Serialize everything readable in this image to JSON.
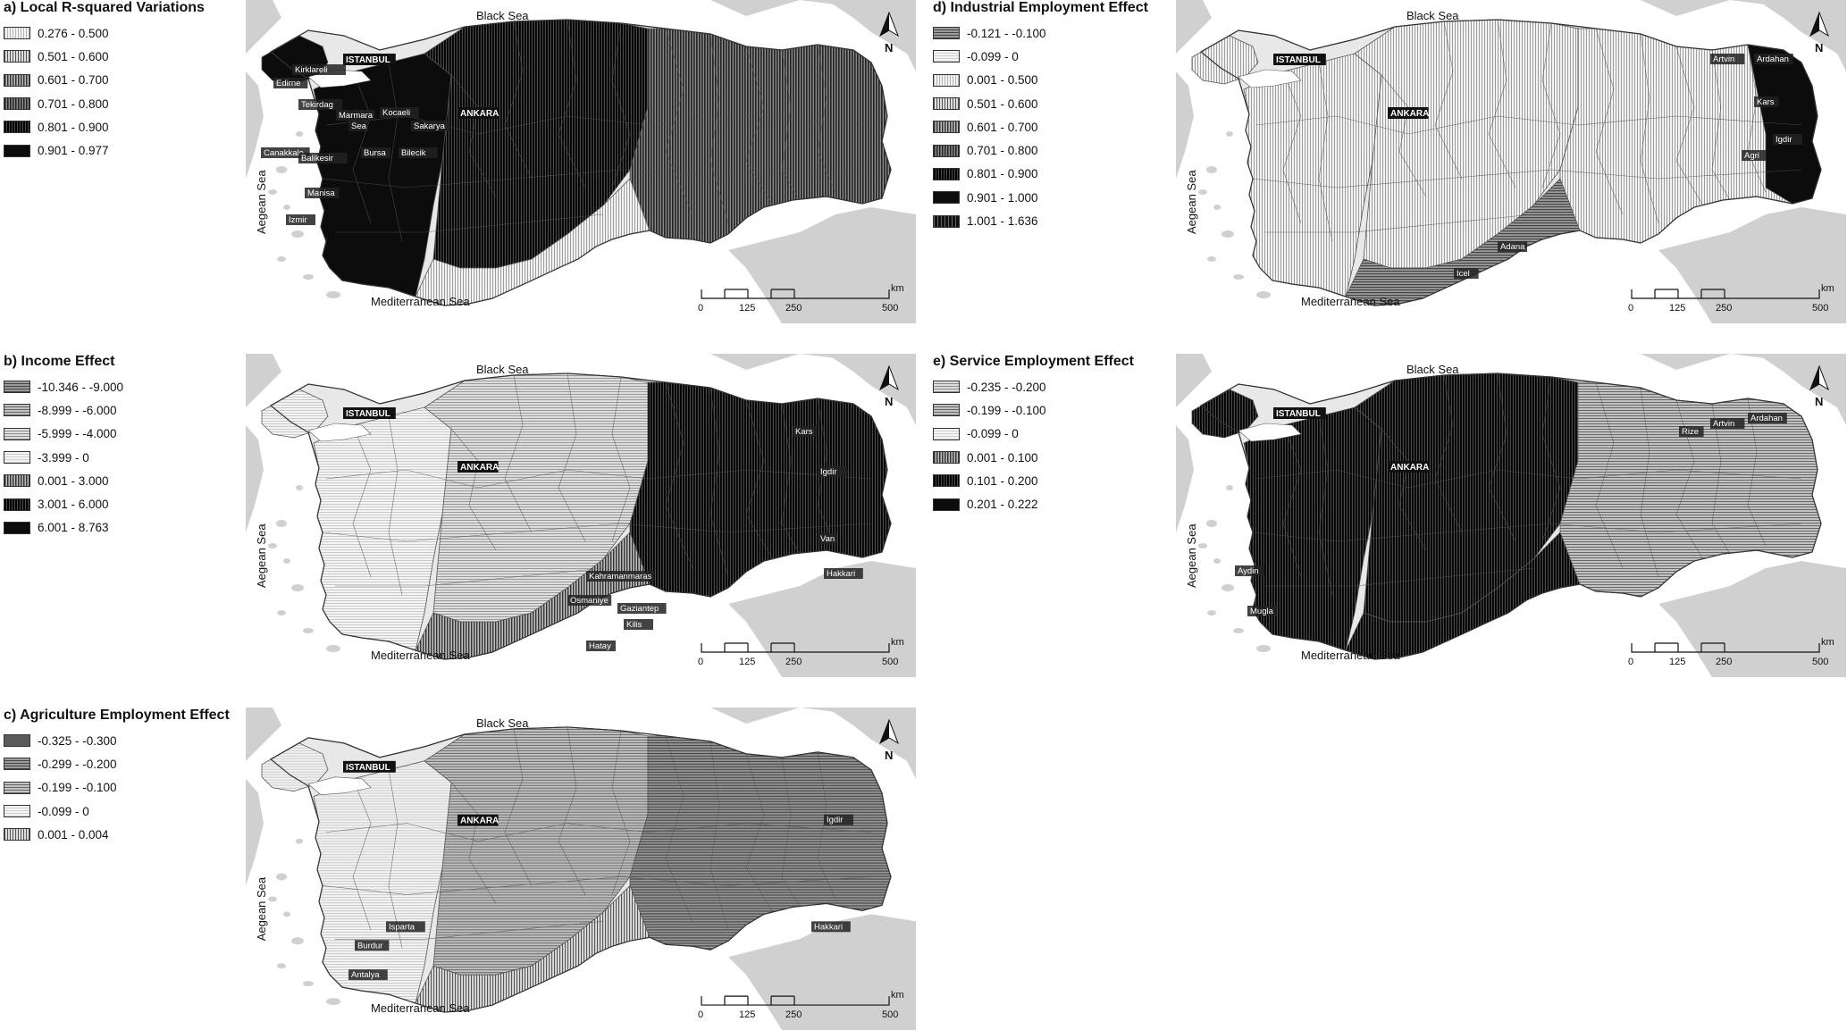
{
  "common": {
    "black_sea": "Black Sea",
    "mediterranean_sea": "Mediterranean Sea",
    "aegean_sea": "Aegean Sea",
    "north": "N",
    "scale_ticks": [
      "0",
      "125",
      "250",
      "500"
    ],
    "scale_unit": "km",
    "capital": "ANKARA",
    "istanbul": "ISTANBUL"
  },
  "panels": [
    {
      "id": "a",
      "title": "a) Local R-squared Variations",
      "legend": [
        {
          "label": "0.276 - 0.500",
          "pattern": "v-light"
        },
        {
          "label": "0.501 - 0.600",
          "pattern": "v-mid"
        },
        {
          "label": "0.601 - 0.700",
          "pattern": "v-dark"
        },
        {
          "label": "0.701 - 0.800",
          "pattern": "v-darker"
        },
        {
          "label": "0.801 - 0.900",
          "pattern": "v-darkest"
        },
        {
          "label": "0.901 - 0.977",
          "pattern": "solid-black"
        }
      ],
      "regions": {
        "west": "solid-black",
        "central": "v-darkest",
        "east": "v-darker",
        "south": "v-light"
      },
      "cities": [
        {
          "name": "Kirklareli",
          "col": 0.05,
          "row": 0.17
        },
        {
          "name": "Edirne",
          "col": 0.02,
          "row": 0.22
        },
        {
          "name": "Tekirdag",
          "col": 0.06,
          "row": 0.3
        },
        {
          "name": "Marmara",
          "col": 0.12,
          "row": 0.34
        },
        {
          "name": "Sea",
          "col": 0.14,
          "row": 0.38
        },
        {
          "name": "Kocaeli",
          "col": 0.19,
          "row": 0.33
        },
        {
          "name": "Sakarya",
          "col": 0.24,
          "row": 0.38
        },
        {
          "name": "Canakkale",
          "col": 0.0,
          "row": 0.48
        },
        {
          "name": "Balikesir",
          "col": 0.06,
          "row": 0.5
        },
        {
          "name": "Bursa",
          "col": 0.16,
          "row": 0.48
        },
        {
          "name": "Bilecik",
          "col": 0.22,
          "row": 0.48
        },
        {
          "name": "Manisa",
          "col": 0.07,
          "row": 0.63
        },
        {
          "name": "Izmir",
          "col": 0.04,
          "row": 0.73
        }
      ]
    },
    {
      "id": "b",
      "title": "b) Income Effect",
      "legend": [
        {
          "label": "-10.346 -  -9.000",
          "pattern": "h-dark"
        },
        {
          "label": "-8.999 -  -6.000",
          "pattern": "h-mid"
        },
        {
          "label": "-5.999 -  -4.000",
          "pattern": "h-light"
        },
        {
          "label": "-3.999 - 0",
          "pattern": "h-lighter"
        },
        {
          "label": "0.001 - 3.000",
          "pattern": "v-dark"
        },
        {
          "label": "3.001 - 6.000",
          "pattern": "v-darkest"
        },
        {
          "label": "6.001 - 8.763",
          "pattern": "solid-black"
        }
      ],
      "regions": {
        "west": "h-lighter",
        "central": "h-light",
        "east": "v-darkest",
        "south": "v-dark"
      },
      "cities": [
        {
          "name": "Kars",
          "col": 0.85,
          "row": 0.2
        },
        {
          "name": "Igdir",
          "col": 0.89,
          "row": 0.35
        },
        {
          "name": "Van",
          "col": 0.89,
          "row": 0.6
        },
        {
          "name": "Hakkari",
          "col": 0.9,
          "row": 0.73
        },
        {
          "name": "Kahramanmaras",
          "col": 0.52,
          "row": 0.74
        },
        {
          "name": "Osmaniye",
          "col": 0.49,
          "row": 0.83
        },
        {
          "name": "Gaziantep",
          "col": 0.57,
          "row": 0.86
        },
        {
          "name": "Kilis",
          "col": 0.58,
          "row": 0.92
        },
        {
          "name": "Hatay",
          "col": 0.52,
          "row": 1.0
        }
      ]
    },
    {
      "id": "c",
      "title": "c) Agriculture Employment Effect",
      "legend": [
        {
          "label": "-0.325 -  -0.300",
          "pattern": "solid-dark"
        },
        {
          "label": "-0.299 -  -0.200",
          "pattern": "h-dark"
        },
        {
          "label": "-0.199 -  -0.100",
          "pattern": "h-mid"
        },
        {
          "label": "-0.099 - 0",
          "pattern": "h-lighter"
        },
        {
          "label": "0.001 - 0.004",
          "pattern": "v-mid"
        }
      ],
      "regions": {
        "west": "h-lighter",
        "central": "h-mid",
        "east": "h-dark",
        "south": "v-mid"
      },
      "cities": [
        {
          "name": "Igdir",
          "col": 0.9,
          "row": 0.33
        },
        {
          "name": "Hakkari",
          "col": 0.88,
          "row": 0.73
        },
        {
          "name": "Isparta",
          "col": 0.2,
          "row": 0.73
        },
        {
          "name": "Burdur",
          "col": 0.15,
          "row": 0.8
        },
        {
          "name": "Antalya",
          "col": 0.14,
          "row": 0.91
        }
      ]
    },
    {
      "id": "d",
      "title": "d) Industrial Employment Effect",
      "legend": [
        {
          "label": "-0.121 -  -0.100",
          "pattern": "h-dark"
        },
        {
          "label": "-0.099 - 0",
          "pattern": "h-lighter"
        },
        {
          "label": "0.001 - 0.500",
          "pattern": "v-light"
        },
        {
          "label": "0.501 - 0.600",
          "pattern": "v-mid"
        },
        {
          "label": "0.601 - 0.700",
          "pattern": "v-dark"
        },
        {
          "label": "0.701 - 0.800",
          "pattern": "v-darker"
        },
        {
          "label": "0.801 - 0.900",
          "pattern": "v-darkest"
        },
        {
          "label": "0.901 - 1.000",
          "pattern": "solid-black"
        },
        {
          "label": "1.001 - 1.636",
          "pattern": "v-black"
        }
      ],
      "regions": {
        "west": "v-light",
        "central": "v-light",
        "east": "v-light",
        "south": "h-dark",
        "far_east": "solid-black"
      },
      "cities": [
        {
          "name": "Artvin",
          "col": 0.83,
          "row": 0.13
        },
        {
          "name": "Ardahan",
          "col": 0.9,
          "row": 0.13
        },
        {
          "name": "Kars",
          "col": 0.9,
          "row": 0.29
        },
        {
          "name": "Igdir",
          "col": 0.93,
          "row": 0.43
        },
        {
          "name": "Agri",
          "col": 0.88,
          "row": 0.49
        },
        {
          "name": "Adana",
          "col": 0.49,
          "row": 0.83
        },
        {
          "name": "Icel",
          "col": 0.42,
          "row": 0.93
        }
      ]
    },
    {
      "id": "e",
      "title": "e) Service Employment Effect",
      "legend": [
        {
          "label": "-0.235 -  -0.200",
          "pattern": "h-light"
        },
        {
          "label": "-0.199 -  -0.100",
          "pattern": "h-mid"
        },
        {
          "label": "-0.099 - 0",
          "pattern": "h-lighter"
        },
        {
          "label": "0.001 - 0.100",
          "pattern": "v-dark"
        },
        {
          "label": "0.101 - 0.200",
          "pattern": "v-darkest"
        },
        {
          "label": "0.201 - 0.222",
          "pattern": "solid-black"
        }
      ],
      "regions": {
        "west": "v-darkest",
        "central": "v-darkest",
        "east": "h-mid",
        "south": "v-darkest"
      },
      "cities": [
        {
          "name": "Rize",
          "col": 0.78,
          "row": 0.2
        },
        {
          "name": "Artvin",
          "col": 0.83,
          "row": 0.17
        },
        {
          "name": "Ardahan",
          "col": 0.89,
          "row": 0.15
        },
        {
          "name": "Aydin",
          "col": 0.07,
          "row": 0.72
        },
        {
          "name": "Mugla",
          "col": 0.09,
          "row": 0.87
        }
      ]
    }
  ]
}
